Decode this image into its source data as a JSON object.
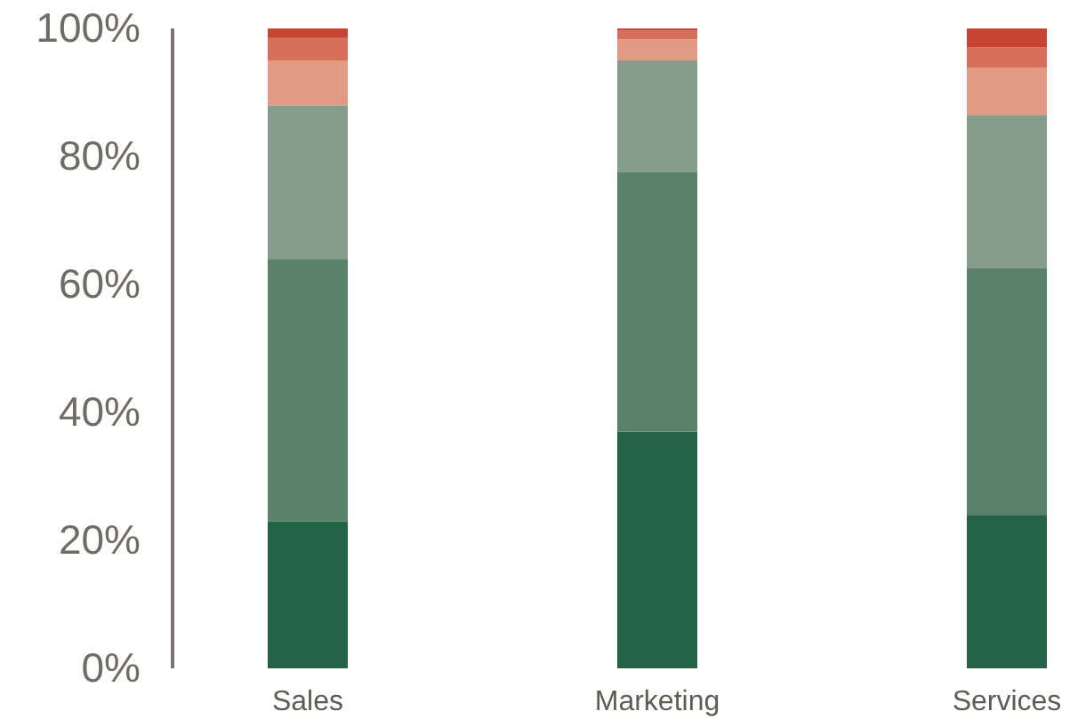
{
  "chart_data": {
    "type": "bar",
    "stacked": true,
    "categories": [
      "Sales",
      "Marketing",
      "Services"
    ],
    "series": [
      {
        "color": "#246446",
        "values": [
          23,
          37,
          24
        ]
      },
      {
        "color": "#5a826a",
        "values": [
          41,
          40.5,
          38.5
        ]
      },
      {
        "color": "#869d8b",
        "values": [
          24,
          17.5,
          24
        ]
      },
      {
        "color": "#e29a85",
        "values": [
          7,
          3.3,
          7.3
        ]
      },
      {
        "color": "#d6705a",
        "values": [
          3.5,
          1.4,
          3.2
        ]
      },
      {
        "color": "#c84432",
        "values": [
          1.5,
          0.3,
          3
        ]
      }
    ],
    "ylim": [
      0,
      100
    ],
    "yticks": [
      {
        "value": 0,
        "label": "0%"
      },
      {
        "value": 20,
        "label": "20%"
      },
      {
        "value": 40,
        "label": "40%"
      },
      {
        "value": 60,
        "label": "60%"
      },
      {
        "value": 80,
        "label": "80%"
      },
      {
        "value": 100,
        "label": "100%"
      }
    ],
    "grid": false
  }
}
